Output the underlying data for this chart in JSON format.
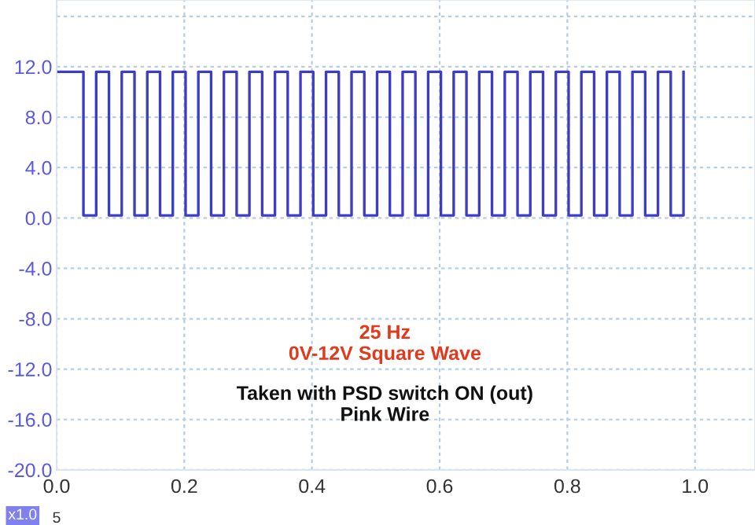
{
  "chart_data": {
    "type": "line",
    "x": [
      0,
      0.042,
      0.042,
      0.062,
      0.062,
      0.082,
      0.082,
      0.102,
      0.102,
      0.122,
      0.122,
      0.142,
      0.142,
      0.162,
      0.162,
      0.182,
      0.182,
      0.202,
      0.202,
      0.222,
      0.222,
      0.242,
      0.242,
      0.262,
      0.262,
      0.282,
      0.282,
      0.302,
      0.302,
      0.322,
      0.322,
      0.342,
      0.342,
      0.362,
      0.362,
      0.382,
      0.382,
      0.402,
      0.402,
      0.422,
      0.422,
      0.442,
      0.442,
      0.462,
      0.462,
      0.482,
      0.482,
      0.502,
      0.502,
      0.522,
      0.522,
      0.542,
      0.542,
      0.562,
      0.562,
      0.582,
      0.582,
      0.602,
      0.602,
      0.622,
      0.622,
      0.642,
      0.642,
      0.662,
      0.662,
      0.682,
      0.682,
      0.702,
      0.702,
      0.722,
      0.722,
      0.742,
      0.742,
      0.762,
      0.762,
      0.782,
      0.782,
      0.802,
      0.802,
      0.822,
      0.822,
      0.842,
      0.842,
      0.862,
      0.862,
      0.882,
      0.882,
      0.902,
      0.902,
      0.922,
      0.922,
      0.942,
      0.942,
      0.962,
      0.962,
      0.982,
      0.982
    ],
    "series": [
      {
        "color": "#3c3cc4",
        "values": [
          11.6,
          11.6,
          0.2,
          0.2,
          11.6,
          11.6,
          0.2,
          0.2,
          11.6,
          11.6,
          0.2,
          0.2,
          11.6,
          11.6,
          0.2,
          0.2,
          11.6,
          11.6,
          0.2,
          0.2,
          11.6,
          11.6,
          0.2,
          0.2,
          11.6,
          11.6,
          0.2,
          0.2,
          11.6,
          11.6,
          0.2,
          0.2,
          11.6,
          11.6,
          0.2,
          0.2,
          11.6,
          11.6,
          0.2,
          0.2,
          11.6,
          11.6,
          0.2,
          0.2,
          11.6,
          11.6,
          0.2,
          0.2,
          11.6,
          11.6,
          0.2,
          0.2,
          11.6,
          11.6,
          0.2,
          0.2,
          11.6,
          11.6,
          0.2,
          0.2,
          11.6,
          11.6,
          0.2,
          0.2,
          11.6,
          11.6,
          0.2,
          0.2,
          11.6,
          11.6,
          0.2,
          0.2,
          11.6,
          11.6,
          0.2,
          0.2,
          11.6,
          11.6,
          0.2,
          0.2,
          11.6,
          11.6,
          0.2,
          0.2,
          11.6,
          11.6,
          0.2,
          0.2,
          11.6,
          11.6,
          0.2,
          0.2,
          11.6,
          11.6,
          0.2,
          0.2,
          11.6
        ]
      }
    ],
    "xlim": [
      0,
      1.094
    ],
    "ylim": [
      -20,
      17.3
    ],
    "xticks": [
      {
        "value": 0,
        "label": "0.0"
      },
      {
        "value": 0.2,
        "label": "0.2"
      },
      {
        "value": 0.4,
        "label": "0.4"
      },
      {
        "value": 0.6,
        "label": "0.6"
      },
      {
        "value": 0.8,
        "label": "0.8"
      },
      {
        "value": 1.0,
        "label": "1.0"
      }
    ],
    "yticks": [
      {
        "value": -20,
        "label": "-20.0"
      },
      {
        "value": -16,
        "label": "-16.0"
      },
      {
        "value": -12,
        "label": "-12.0"
      },
      {
        "value": -8,
        "label": "-8.0"
      },
      {
        "value": -4,
        "label": "-4.0"
      },
      {
        "value": 0,
        "label": "0.0"
      },
      {
        "value": 4,
        "label": "4.0"
      },
      {
        "value": 8,
        "label": "8.0"
      },
      {
        "value": 12,
        "label": "12.0"
      },
      {
        "value": 16,
        "label": null
      }
    ],
    "grid": true,
    "line_style": "solid",
    "marker": "none",
    "annotations": [
      "25 Hz",
      "0V-12V Square Wave",
      "Taken with PSD switch ON (out)",
      "Pink Wire",
      "x1.0",
      "5"
    ]
  }
}
